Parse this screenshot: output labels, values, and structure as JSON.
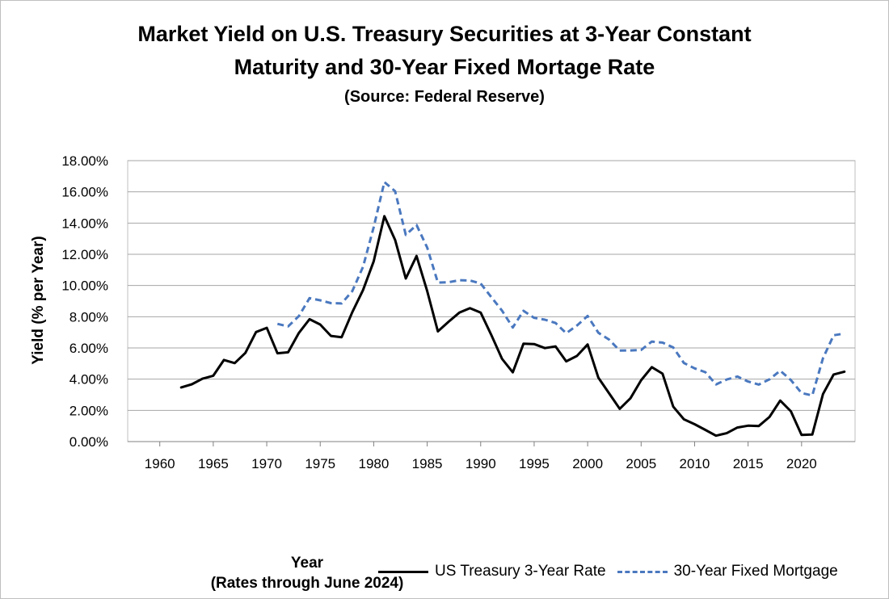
{
  "chart_data": {
    "type": "line",
    "title": "Market Yield on U.S. Treasury Securities at 3-Year Constant Maturity and 30-Year Fixed Mortage Rate",
    "subtitle": "(Source: Federal Reserve)",
    "xlabel": "Year",
    "xlabel_note": "(Rates through June 2024)",
    "ylabel": "Yield (% per Year)",
    "xlim": [
      1957,
      2025
    ],
    "ylim": [
      0,
      18
    ],
    "x_ticks": [
      1960,
      1965,
      1970,
      1975,
      1980,
      1985,
      1990,
      1995,
      2000,
      2005,
      2010,
      2015,
      2020
    ],
    "y_ticks": [
      "0.00%",
      "2.00%",
      "4.00%",
      "6.00%",
      "8.00%",
      "10.00%",
      "12.00%",
      "14.00%",
      "16.00%",
      "18.00%"
    ],
    "grid": "horizontal",
    "legend_position": "bottom",
    "series": [
      {
        "name": "US Treasury 3-Year Rate",
        "color": "#000000",
        "style": "solid",
        "x": [
          1962,
          1963,
          1964,
          1965,
          1966,
          1967,
          1968,
          1969,
          1970,
          1971,
          1972,
          1973,
          1974,
          1975,
          1976,
          1977,
          1978,
          1979,
          1980,
          1981,
          1982,
          1983,
          1984,
          1985,
          1986,
          1987,
          1988,
          1989,
          1990,
          1991,
          1992,
          1993,
          1994,
          1995,
          1996,
          1997,
          1998,
          1999,
          2000,
          2001,
          2002,
          2003,
          2004,
          2005,
          2006,
          2007,
          2008,
          2009,
          2010,
          2011,
          2012,
          2013,
          2014,
          2015,
          2016,
          2017,
          2018,
          2019,
          2020,
          2021,
          2022,
          2023,
          2024
        ],
        "values": [
          3.47,
          3.67,
          4.03,
          4.22,
          5.23,
          5.03,
          5.68,
          7.02,
          7.29,
          5.66,
          5.72,
          6.96,
          7.84,
          7.5,
          6.77,
          6.69,
          8.29,
          9.71,
          11.55,
          14.44,
          12.92,
          10.45,
          11.89,
          9.64,
          7.06,
          7.68,
          8.26,
          8.55,
          8.26,
          6.82,
          5.3,
          4.44,
          6.27,
          6.25,
          5.99,
          6.1,
          5.14,
          5.49,
          6.22,
          4.09,
          3.1,
          2.1,
          2.78,
          3.93,
          4.77,
          4.35,
          2.24,
          1.43,
          1.11,
          0.75,
          0.38,
          0.54,
          0.9,
          1.02,
          1.0,
          1.58,
          2.63,
          1.94,
          0.43,
          0.45,
          3.04,
          4.3,
          4.48
        ]
      },
      {
        "name": "30-Year Fixed Mortgage",
        "color": "#4a78bf",
        "style": "dashed",
        "x": [
          1971,
          1972,
          1973,
          1974,
          1975,
          1976,
          1977,
          1978,
          1979,
          1980,
          1981,
          1982,
          1983,
          1984,
          1985,
          1986,
          1987,
          1988,
          1989,
          1990,
          1991,
          1992,
          1993,
          1994,
          1995,
          1996,
          1997,
          1998,
          1999,
          2000,
          2001,
          2002,
          2003,
          2004,
          2005,
          2006,
          2007,
          2008,
          2009,
          2010,
          2011,
          2012,
          2013,
          2014,
          2015,
          2016,
          2017,
          2018,
          2019,
          2020,
          2021,
          2022,
          2023,
          2024
        ],
        "values": [
          7.54,
          7.38,
          8.04,
          9.19,
          9.05,
          8.87,
          8.85,
          9.64,
          11.2,
          13.74,
          16.63,
          16.04,
          13.24,
          13.88,
          12.43,
          10.19,
          10.21,
          10.34,
          10.32,
          10.13,
          9.25,
          8.39,
          7.31,
          8.38,
          7.93,
          7.81,
          7.6,
          6.94,
          7.44,
          8.05,
          6.97,
          6.54,
          5.83,
          5.84,
          5.87,
          6.41,
          6.34,
          6.03,
          5.04,
          4.69,
          4.45,
          3.66,
          3.98,
          4.17,
          3.85,
          3.65,
          3.99,
          4.54,
          3.94,
          3.11,
          2.96,
          5.34,
          6.81,
          6.92
        ]
      }
    ]
  }
}
